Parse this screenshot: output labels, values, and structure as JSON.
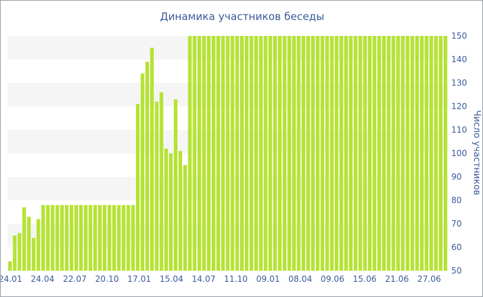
{
  "chart_data": {
    "type": "bar",
    "title": "Динамика участников беседы",
    "ylabel": "Число участников",
    "xlabel": "",
    "ylim": [
      50,
      150
    ],
    "y_ticks": [
      50,
      60,
      70,
      80,
      90,
      100,
      110,
      120,
      130,
      140,
      150
    ],
    "y_axis_position": "right",
    "x_tick_labels": [
      "24.01",
      "24.04",
      "22.07",
      "20.10",
      "17.01",
      "15.04",
      "14.07",
      "11.10",
      "09.01",
      "08.04",
      "09.06",
      "15.06",
      "21.06",
      "27.06"
    ],
    "grid": true,
    "bar_color": "#b5e334",
    "values": [
      54,
      65,
      66,
      77,
      73,
      64,
      72,
      78,
      78,
      78,
      78,
      78,
      78,
      78,
      78,
      78,
      78,
      78,
      78,
      78,
      78,
      78,
      78,
      78,
      78,
      78,
      78,
      121,
      134,
      139,
      145,
      122,
      126,
      102,
      100,
      123,
      101,
      95,
      150,
      150,
      150,
      150,
      150,
      150,
      150,
      150,
      150,
      150,
      150,
      150,
      150,
      150,
      150,
      150,
      150,
      150,
      150,
      150,
      150,
      150,
      150,
      150,
      150,
      150,
      150,
      150,
      150,
      150,
      150,
      150,
      150,
      150,
      150,
      150,
      150,
      150,
      150,
      150,
      150,
      150,
      150,
      150,
      150,
      150,
      150,
      150,
      150,
      150,
      150,
      150,
      150,
      150,
      150
    ]
  }
}
